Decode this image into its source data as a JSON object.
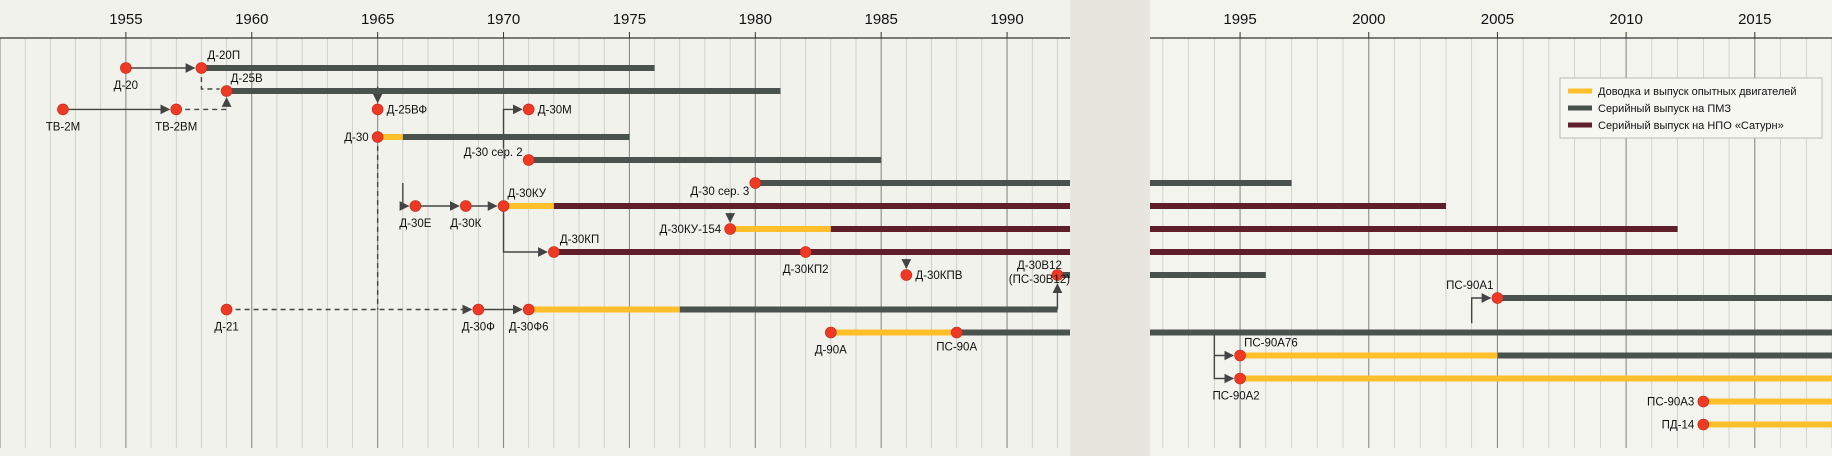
{
  "chart_data": {
    "type": "timeline",
    "title": "",
    "xlabel": "",
    "ylabel": "",
    "x_axis": {
      "segments": [
        {
          "from": 1950,
          "to": 1992.5
        },
        {
          "from": 1991.5,
          "to": 2018
        }
      ],
      "ticks": [
        1955,
        1960,
        1965,
        1970,
        1975,
        1980,
        1985,
        1990,
        1995,
        2000,
        2005,
        2010,
        2015
      ],
      "grid": true
    },
    "legend": {
      "placement": "top-right",
      "items": [
        {
          "key": "dev",
          "label": "Доводка и выпуск опытных двигателей",
          "color": "#ffbf2a"
        },
        {
          "key": "pmz",
          "label": "Серийный выпуск на ПМЗ",
          "color": "#4a524e"
        },
        {
          "key": "saturn",
          "label": "Серийный выпуск на НПО «Сатурн»",
          "color": "#5e1e2a"
        }
      ]
    },
    "bars": [
      {
        "y": 1,
        "start": 1958,
        "end": 1976,
        "kind": "pmz"
      },
      {
        "y": 2,
        "start": 1959,
        "end": 1981,
        "kind": "pmz"
      },
      {
        "y": 4,
        "start": 1965,
        "end": 1966,
        "kind": "dev"
      },
      {
        "y": 4,
        "start": 1966,
        "end": 1975,
        "kind": "pmz"
      },
      {
        "y": 5,
        "start": 1971,
        "end": 1985,
        "kind": "pmz"
      },
      {
        "y": 6,
        "start": 1980,
        "end": 1997,
        "kind": "pmz"
      },
      {
        "y": 7,
        "start": 1970,
        "end": 1972,
        "kind": "dev"
      },
      {
        "y": 7,
        "start": 1972,
        "end": 2003,
        "kind": "saturn"
      },
      {
        "y": 8,
        "start": 1979,
        "end": 1983,
        "kind": "dev"
      },
      {
        "y": 8,
        "start": 1983,
        "end": 2012,
        "kind": "saturn"
      },
      {
        "y": 9,
        "start": 1972,
        "end": 2018,
        "kind": "saturn"
      },
      {
        "y": 10,
        "start": 1992,
        "end": 1996,
        "kind": "pmz"
      },
      {
        "y": 11,
        "start": 2005,
        "end": 2018,
        "kind": "pmz"
      },
      {
        "y": 11.5,
        "start": 1971,
        "end": 1977,
        "kind": "dev"
      },
      {
        "y": 11.5,
        "start": 1977,
        "end": 1992,
        "kind": "pmz"
      },
      {
        "y": 12.5,
        "start": 1983,
        "end": 1988,
        "kind": "dev"
      },
      {
        "y": 12.5,
        "start": 1988,
        "end": 2018,
        "kind": "pmz"
      },
      {
        "y": 13.5,
        "start": 1995,
        "end": 2005,
        "kind": "dev"
      },
      {
        "y": 13.5,
        "start": 2005,
        "end": 2018,
        "kind": "pmz"
      },
      {
        "y": 14.5,
        "start": 1995,
        "end": 2018,
        "kind": "dev"
      },
      {
        "y": 15.5,
        "start": 2013,
        "end": 2018,
        "kind": "dev"
      },
      {
        "y": 16.5,
        "start": 2013,
        "end": 2018,
        "kind": "dev"
      }
    ],
    "points": [
      {
        "label": "Д-20",
        "x": 1955,
        "y": 1,
        "lpos": "below"
      },
      {
        "label": "Д-20П",
        "x": 1958,
        "y": 1,
        "lpos": "above"
      },
      {
        "label": "Д-25В",
        "x": 1959,
        "y": 2,
        "lpos": "aboveRight"
      },
      {
        "label": "ТВ-2М",
        "x": 1952.5,
        "y": 2.8,
        "lpos": "below"
      },
      {
        "label": "ТВ-2ВМ",
        "x": 1957,
        "y": 2.8,
        "lpos": "below"
      },
      {
        "label": "Д-25ВФ",
        "x": 1965,
        "y": 2.8,
        "lpos": "right"
      },
      {
        "label": "Д-30М",
        "x": 1971,
        "y": 2.8,
        "lpos": "right"
      },
      {
        "label": "Д-30",
        "x": 1965,
        "y": 4,
        "lpos": "left"
      },
      {
        "label": "Д-30 сер. 2",
        "x": 1971,
        "y": 5,
        "lpos": "leftAbove"
      },
      {
        "label": "Д-30 сер. 3",
        "x": 1980,
        "y": 6,
        "lpos": "leftBelow"
      },
      {
        "label": "Д-30Е",
        "x": 1966.5,
        "y": 7,
        "lpos": "below"
      },
      {
        "label": "Д-30К",
        "x": 1968.5,
        "y": 7,
        "lpos": "below"
      },
      {
        "label": "Д-30КУ",
        "x": 1970,
        "y": 7,
        "lpos": "aboveRight"
      },
      {
        "label": "Д-30КУ-154",
        "x": 1979,
        "y": 8,
        "lpos": "left"
      },
      {
        "label": "Д-30КП",
        "x": 1972,
        "y": 9,
        "lpos": "above"
      },
      {
        "label": "Д-30КП2",
        "x": 1982,
        "y": 9,
        "lpos": "below"
      },
      {
        "label": "Д-30КПВ",
        "x": 1986,
        "y": 10,
        "lpos": "right"
      },
      {
        "label": "Д-30В12 (ПС-30В12)",
        "x": 1992,
        "y": 10,
        "lpos": "leftStack"
      },
      {
        "label": "ПС-90А1",
        "x": 2005,
        "y": 11,
        "lpos": "aboveLeft"
      },
      {
        "label": "Д-21",
        "x": 1959,
        "y": 11.5,
        "lpos": "below"
      },
      {
        "label": "Д-30Ф",
        "x": 1969,
        "y": 11.5,
        "lpos": "below"
      },
      {
        "label": "Д-30Ф6",
        "x": 1971,
        "y": 11.5,
        "lpos": "below"
      },
      {
        "label": "Д-90А",
        "x": 1983,
        "y": 12.5,
        "lpos": "below"
      },
      {
        "label": "ПС-90А",
        "x": 1988,
        "y": 12.5,
        "lpos": "belowBar"
      },
      {
        "label": "ПС-90А76",
        "x": 1995,
        "y": 13.5,
        "lpos": "aboveRight"
      },
      {
        "label": "ПС-90А2",
        "x": 1995,
        "y": 14.5,
        "lpos": "belowLeft"
      },
      {
        "label": "ПС-90А3",
        "x": 2013,
        "y": 15.5,
        "lpos": "left"
      },
      {
        "label": "ПД-14",
        "x": 2013,
        "y": 16.5,
        "lpos": "left"
      }
    ]
  }
}
